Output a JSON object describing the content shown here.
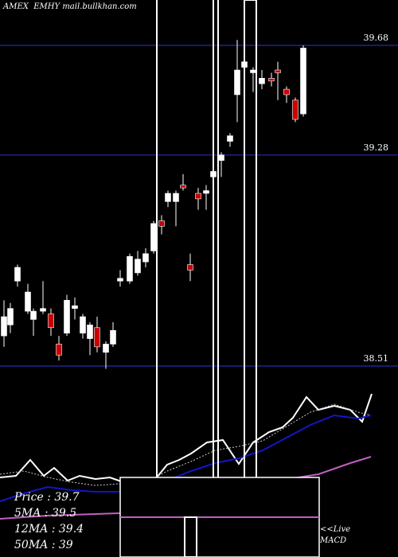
{
  "header": {
    "exchange": "AMEX",
    "symbol": "EMHY",
    "site": "mail.bullkhan.com"
  },
  "stats": {
    "price": "Price   : 39.7",
    "ma5": "5MA : 39.5",
    "ma12": "12MA : 39.4",
    "ma50": "50MA : 39"
  },
  "macd": {
    "live": "<<Live",
    "label": "MACD"
  },
  "colors": {
    "background": "#000000",
    "up": "#ffffff",
    "down": "#cc0000",
    "gridline": "#1a1a6e",
    "ma_blue": "#1515c8",
    "ma_pink": "#c060c0"
  },
  "chart_data": {
    "type": "candlestick",
    "ylim": [
      38.42,
      39.72
    ],
    "price_levels": [
      39.68,
      39.28,
      38.51
    ],
    "price_labels": [
      "39.68",
      "39.28",
      "38.51"
    ],
    "candles": [
      {
        "o": 38.62,
        "h": 38.75,
        "l": 38.58,
        "c": 38.69
      },
      {
        "o": 38.66,
        "h": 38.74,
        "l": 38.63,
        "c": 38.72
      },
      {
        "o": 38.82,
        "h": 38.88,
        "l": 38.8,
        "c": 38.87
      },
      {
        "o": 38.71,
        "h": 38.81,
        "l": 38.7,
        "c": 38.78
      },
      {
        "o": 38.68,
        "h": 38.72,
        "l": 38.62,
        "c": 38.71
      },
      {
        "o": 38.71,
        "h": 38.82,
        "l": 38.7,
        "c": 38.72
      },
      {
        "o": 38.7,
        "h": 38.72,
        "l": 38.62,
        "c": 38.65
      },
      {
        "o": 38.59,
        "h": 38.62,
        "l": 38.53,
        "c": 38.55
      },
      {
        "o": 38.63,
        "h": 38.77,
        "l": 38.62,
        "c": 38.75
      },
      {
        "o": 38.72,
        "h": 38.76,
        "l": 38.68,
        "c": 38.73
      },
      {
        "o": 38.63,
        "h": 38.7,
        "l": 38.61,
        "c": 38.69
      },
      {
        "o": 38.61,
        "h": 38.67,
        "l": 38.55,
        "c": 38.66
      },
      {
        "o": 38.65,
        "h": 38.69,
        "l": 38.56,
        "c": 38.58
      },
      {
        "o": 38.56,
        "h": 38.6,
        "l": 38.5,
        "c": 38.59
      },
      {
        "o": 38.59,
        "h": 38.67,
        "l": 38.58,
        "c": 38.64
      },
      {
        "o": 38.82,
        "h": 38.86,
        "l": 38.8,
        "c": 38.83
      },
      {
        "o": 38.82,
        "h": 38.92,
        "l": 38.81,
        "c": 38.91
      },
      {
        "o": 38.85,
        "h": 38.93,
        "l": 38.84,
        "c": 38.9
      },
      {
        "o": 38.89,
        "h": 38.94,
        "l": 38.87,
        "c": 38.92
      },
      {
        "o": 38.93,
        "h": 39.04,
        "l": 38.92,
        "c": 39.03
      },
      {
        "o": 39.04,
        "h": 39.06,
        "l": 38.99,
        "c": 39.02
      },
      {
        "o": 39.11,
        "h": 39.15,
        "l": 39.09,
        "c": 39.14
      },
      {
        "o": 39.11,
        "h": 39.15,
        "l": 39.02,
        "c": 39.14
      },
      {
        "o": 39.17,
        "h": 39.21,
        "l": 39.15,
        "c": 39.16
      },
      {
        "o": 38.88,
        "h": 38.92,
        "l": 38.82,
        "c": 38.86
      },
      {
        "o": 39.14,
        "h": 39.16,
        "l": 39.08,
        "c": 39.12
      },
      {
        "o": 39.14,
        "h": 39.17,
        "l": 39.08,
        "c": 39.15
      },
      {
        "o": 39.2,
        "h": 39.22,
        "l": 39.15,
        "c": 39.22
      },
      {
        "o": 39.26,
        "h": 39.29,
        "l": 39.2,
        "c": 39.28
      },
      {
        "o": 39.33,
        "h": 39.36,
        "l": 39.31,
        "c": 39.35
      },
      {
        "o": 39.5,
        "h": 39.7,
        "l": 39.4,
        "c": 39.59
      },
      {
        "o": 39.6,
        "h": 39.64,
        "l": 39.5,
        "c": 39.62
      },
      {
        "o": 39.58,
        "h": 39.6,
        "l": 39.51,
        "c": 39.59
      },
      {
        "o": 39.54,
        "h": 39.59,
        "l": 39.52,
        "c": 39.56
      },
      {
        "o": 39.56,
        "h": 39.58,
        "l": 39.53,
        "c": 39.55
      },
      {
        "o": 39.59,
        "h": 39.62,
        "l": 39.48,
        "c": 39.58
      },
      {
        "o": 39.52,
        "h": 39.53,
        "l": 39.47,
        "c": 39.5
      },
      {
        "o": 39.48,
        "h": 39.49,
        "l": 39.4,
        "c": 39.41
      },
      {
        "o": 39.43,
        "h": 39.68,
        "l": 39.42,
        "c": 39.67
      }
    ],
    "x": [
      5,
      13,
      22,
      35,
      42,
      54,
      64,
      74,
      84,
      94,
      104,
      113,
      122,
      133,
      142,
      151,
      163,
      173,
      183,
      193,
      203,
      211,
      221,
      230,
      239,
      249,
      259,
      268,
      278,
      289,
      298,
      307,
      318,
      329,
      341,
      349,
      360,
      371,
      381,
      389
    ],
    "ma_lines": [
      {
        "name": "price",
        "color": "#ffffff",
        "width": 2,
        "points": [
          [
            0,
            600
          ],
          [
            20,
            598
          ],
          [
            38,
            578
          ],
          [
            55,
            598
          ],
          [
            68,
            588
          ],
          [
            85,
            604
          ],
          [
            100,
            598
          ],
          [
            120,
            602
          ],
          [
            138,
            600
          ],
          [
            155,
            606
          ],
          [
            175,
            609
          ],
          [
            192,
            606
          ],
          [
            210,
            584
          ],
          [
            225,
            578
          ],
          [
            240,
            570
          ],
          [
            260,
            556
          ],
          [
            280,
            553
          ],
          [
            300,
            583
          ],
          [
            318,
            556
          ],
          [
            338,
            543
          ],
          [
            355,
            537
          ],
          [
            368,
            525
          ],
          [
            385,
            499
          ],
          [
            400,
            515
          ],
          [
            420,
            510
          ],
          [
            440,
            515
          ],
          [
            455,
            530
          ],
          [
            467,
            495
          ]
        ]
      },
      {
        "name": "ma5-dotted",
        "color": "#cccccc",
        "width": 1,
        "dash": "2,2",
        "points": [
          [
            0,
            596
          ],
          [
            30,
            592
          ],
          [
            60,
            600
          ],
          [
            90,
            606
          ],
          [
            120,
            610
          ],
          [
            150,
            608
          ],
          [
            180,
            608
          ],
          [
            210,
            592
          ],
          [
            240,
            580
          ],
          [
            270,
            566
          ],
          [
            300,
            561
          ],
          [
            330,
            554
          ],
          [
            360,
            536
          ],
          [
            390,
            518
          ],
          [
            420,
            508
          ],
          [
            450,
            518
          ],
          [
            466,
            522
          ]
        ]
      },
      {
        "name": "ma12",
        "color": "#1515c8",
        "width": 2,
        "points": [
          [
            0,
            630
          ],
          [
            30,
            620
          ],
          [
            60,
            612
          ],
          [
            90,
            616
          ],
          [
            120,
            618
          ],
          [
            150,
            618
          ],
          [
            180,
            614
          ],
          [
            210,
            604
          ],
          [
            240,
            592
          ],
          [
            270,
            582
          ],
          [
            300,
            576
          ],
          [
            330,
            566
          ],
          [
            360,
            550
          ],
          [
            390,
            534
          ],
          [
            420,
            522
          ],
          [
            450,
            526
          ],
          [
            466,
            522
          ]
        ]
      },
      {
        "name": "ma50",
        "color": "#c060c0",
        "width": 2,
        "points": [
          [
            0,
            652
          ],
          [
            60,
            648
          ],
          [
            120,
            646
          ],
          [
            180,
            644
          ],
          [
            240,
            638
          ],
          [
            300,
            622
          ],
          [
            350,
            604
          ],
          [
            400,
            596
          ],
          [
            440,
            582
          ],
          [
            466,
            574
          ]
        ]
      }
    ]
  }
}
